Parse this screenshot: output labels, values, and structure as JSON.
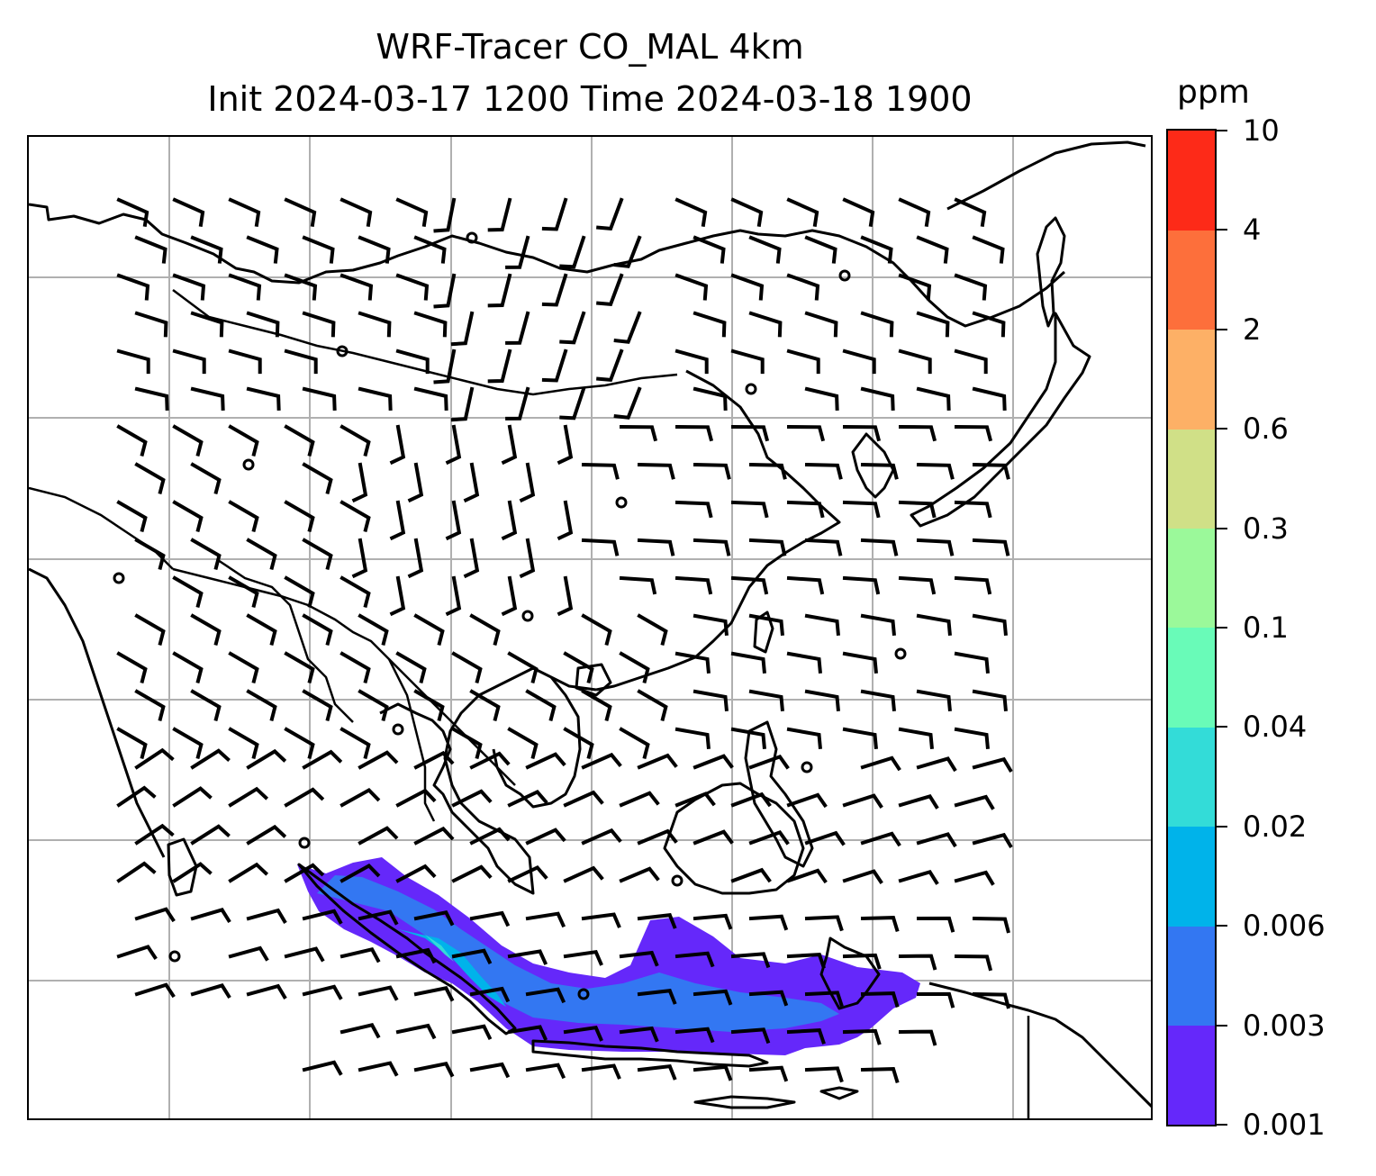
{
  "title": {
    "line1": "WRF-Tracer CO_MAL 4km",
    "line2": "Init 2024-03-17 1200 Time 2024-03-18 1900"
  },
  "colorbar": {
    "unit": "ppm",
    "ticks": [
      "10",
      "4",
      "2",
      "0.6",
      "0.3",
      "0.1",
      "0.04",
      "0.02",
      "0.006",
      "0.003",
      "0.001"
    ],
    "colors": [
      "#6528fa",
      "#3377f2",
      "#00b3ea",
      "#33dcd8",
      "#69fbb8",
      "#9bf99a",
      "#d0e087",
      "#fdb066",
      "#fd6f3b",
      "#fd2a18"
    ]
  },
  "map": {
    "features": [
      "coastlines",
      "country-borders",
      "gridlines",
      "wind-barbs",
      "tracer-concentration-fill"
    ],
    "tracer_max_level": "0.02"
  }
}
